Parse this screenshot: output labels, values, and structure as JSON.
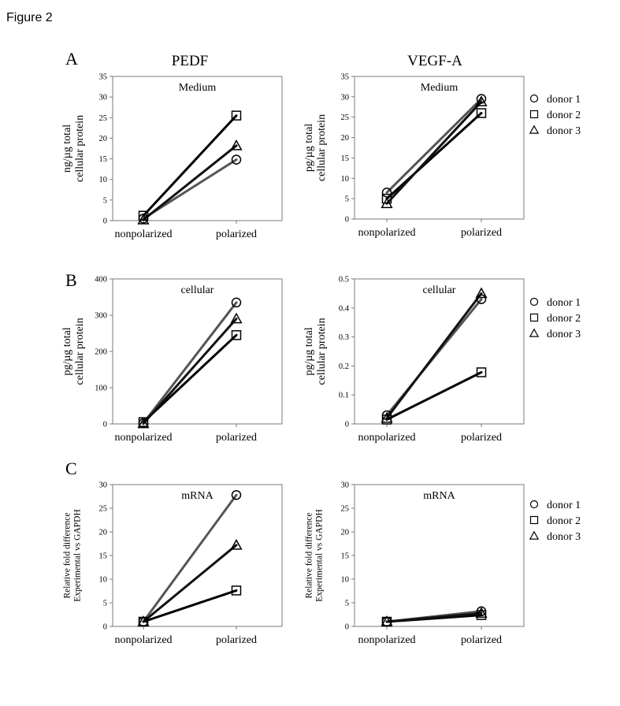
{
  "figure_title": "Figure 2",
  "columns": [
    "PEDF",
    "VEGF-A"
  ],
  "legend": {
    "entries": [
      {
        "name": "donor 1",
        "marker": "circle-icon"
      },
      {
        "name": "donor 2",
        "marker": "square-icon"
      },
      {
        "name": "donor 3",
        "marker": "triangle-icon"
      }
    ]
  },
  "colors": {
    "donor 1": "#555555",
    "donor 2": "#000000",
    "donor 3": "#111111",
    "frame": "#7a7a7a"
  },
  "chart_data": [
    {
      "id": "A-PEDF",
      "row": "A",
      "col": "PEDF",
      "type": "line",
      "title": "Medium",
      "ylabel": [
        "ng/µg total",
        "cellular protein"
      ],
      "categories": [
        "nonpolarized",
        "polarized"
      ],
      "ylim": [
        0,
        35
      ],
      "yticks": [
        0,
        5,
        10,
        15,
        20,
        25,
        30,
        35
      ],
      "series": [
        {
          "name": "donor 1",
          "values": [
            0.5,
            14.8
          ]
        },
        {
          "name": "donor 2",
          "values": [
            1.2,
            25.5
          ]
        },
        {
          "name": "donor 3",
          "values": [
            0.2,
            18.2
          ]
        }
      ]
    },
    {
      "id": "A-VEGF",
      "row": "A",
      "col": "VEGF-A",
      "type": "line",
      "title": "Medium",
      "ylabel": [
        "pg/µg total",
        "cellular protein"
      ],
      "categories": [
        "nonpolarized",
        "polarized"
      ],
      "ylim": [
        0,
        35
      ],
      "yticks": [
        0,
        5,
        10,
        15,
        20,
        25,
        30,
        35
      ],
      "series": [
        {
          "name": "donor 1",
          "values": [
            6.5,
            29.5
          ]
        },
        {
          "name": "donor 2",
          "values": [
            5.0,
            26.0
          ]
        },
        {
          "name": "donor 3",
          "values": [
            3.8,
            28.8
          ]
        }
      ]
    },
    {
      "id": "B-PEDF",
      "row": "B",
      "col": "PEDF",
      "type": "line",
      "title": "cellular",
      "ylabel": [
        "pg/µg total",
        "cellular protein"
      ],
      "categories": [
        "nonpolarized",
        "polarized"
      ],
      "ylim": [
        0,
        400
      ],
      "yticks": [
        0,
        100,
        200,
        300,
        400
      ],
      "series": [
        {
          "name": "donor 1",
          "values": [
            2,
            335
          ]
        },
        {
          "name": "donor 2",
          "values": [
            5,
            245
          ]
        },
        {
          "name": "donor 3",
          "values": [
            1,
            290
          ]
        }
      ]
    },
    {
      "id": "B-VEGF",
      "row": "B",
      "col": "VEGF-A",
      "type": "line",
      "title": "cellular",
      "ylabel": [
        "pg/µg total",
        "cellular protein"
      ],
      "categories": [
        "nonpolarized",
        "polarized"
      ],
      "ylim": [
        0,
        0.5
      ],
      "yticks": [
        0,
        0.1,
        0.2,
        0.3,
        0.4,
        0.5
      ],
      "series": [
        {
          "name": "donor 1",
          "values": [
            0.03,
            0.43
          ]
        },
        {
          "name": "donor 2",
          "values": [
            0.015,
            0.178
          ]
        },
        {
          "name": "donor 3",
          "values": [
            0.02,
            0.45
          ]
        }
      ]
    },
    {
      "id": "C-PEDF",
      "row": "C",
      "col": "PEDF",
      "type": "line",
      "title": "mRNA",
      "ylabel": [
        "Relative fold difference",
        "Experimental vs GAPDH"
      ],
      "categories": [
        "nonpolarized",
        "polarized"
      ],
      "ylim": [
        0,
        30
      ],
      "yticks": [
        0,
        5,
        10,
        15,
        20,
        25,
        30
      ],
      "series": [
        {
          "name": "donor 1",
          "values": [
            1,
            27.8
          ]
        },
        {
          "name": "donor 2",
          "values": [
            1,
            7.6
          ]
        },
        {
          "name": "donor 3",
          "values": [
            1,
            17.2
          ]
        }
      ]
    },
    {
      "id": "C-VEGF",
      "row": "C",
      "col": "VEGF-A",
      "type": "line",
      "title": "mRNA",
      "ylabel": [
        "Relative fold difference",
        "Experimental vs GAPDH"
      ],
      "categories": [
        "nonpolarized",
        "polarized"
      ],
      "ylim": [
        0,
        30
      ],
      "yticks": [
        0,
        5,
        10,
        15,
        20,
        25,
        30
      ],
      "series": [
        {
          "name": "donor 1",
          "values": [
            1,
            3.2
          ]
        },
        {
          "name": "donor 2",
          "values": [
            1,
            2.4
          ]
        },
        {
          "name": "donor 3",
          "values": [
            1,
            2.8
          ]
        }
      ]
    }
  ]
}
